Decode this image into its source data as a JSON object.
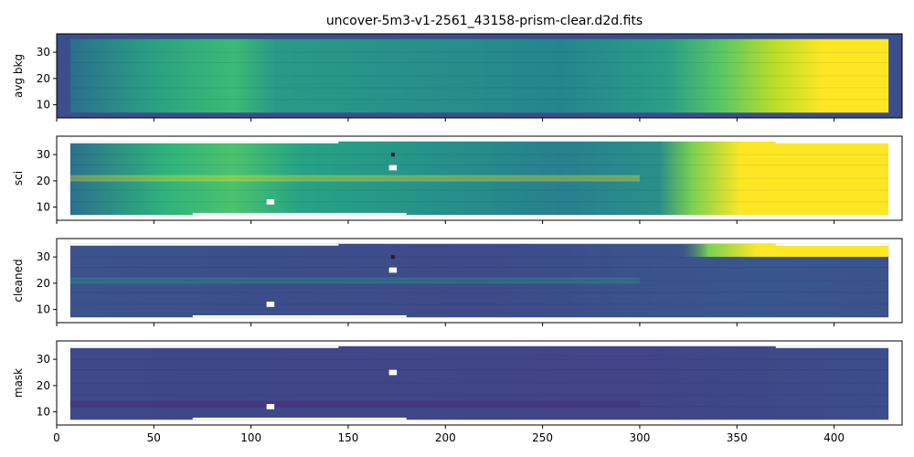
{
  "figure": {
    "title": "uncover-5m3-v1-2561_43158-prism-clear.d2d.fits"
  },
  "chart_data": {
    "type": "heatmap",
    "title": "uncover-5m3-v1-2561_43158-prism-clear.d2d.fits",
    "xlim": [
      0,
      435
    ],
    "ylim": [
      5,
      37
    ],
    "x_ticks": [
      0,
      50,
      100,
      150,
      200,
      250,
      300,
      350,
      400
    ],
    "y_ticks": [
      10,
      20,
      30
    ],
    "data_extent": {
      "x": [
        7,
        428
      ],
      "y": [
        7,
        35
      ]
    },
    "colormap": "viridis",
    "panels": [
      {
        "id": "avg-bkg",
        "ylabel": "avg bkg",
        "background": "#3b4d8a"
      },
      {
        "id": "sci",
        "ylabel": "sci",
        "background": "#ffffff"
      },
      {
        "id": "cleaned",
        "ylabel": "cleaned",
        "background": "#ffffff"
      },
      {
        "id": "mask",
        "ylabel": "mask",
        "background": "#ffffff"
      }
    ],
    "gaps": [
      {
        "x": [
          108,
          112
        ],
        "y": [
          11,
          13
        ]
      },
      {
        "x": [
          171,
          175
        ],
        "y": [
          24,
          26
        ]
      }
    ],
    "dark_pixel": {
      "x": 173,
      "y": 30
    }
  }
}
